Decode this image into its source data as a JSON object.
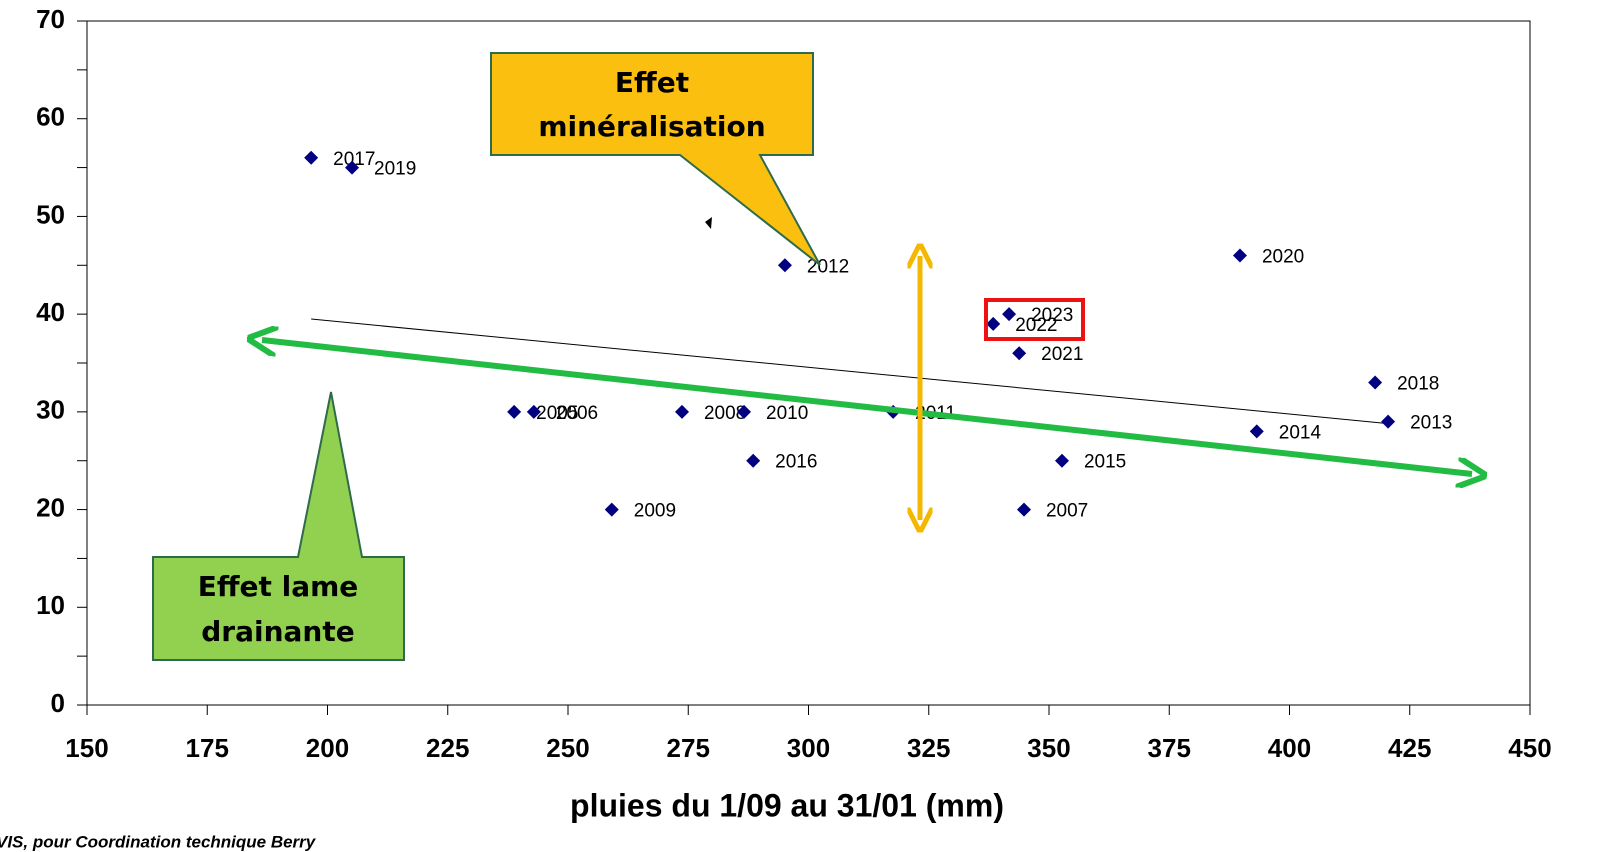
{
  "chart_data": {
    "type": "scatter",
    "x_label": "pluies du 1/09 au 31/01 (mm)",
    "source": "VIS, pour Coordination technique Berry",
    "color": "#000080",
    "x": [
      196.6,
      205.1,
      295.1,
      389.7,
      341.7,
      338.4,
      343.8,
      417.8,
      420.5,
      393.2,
      238.8,
      242.9,
      273.7,
      286.6,
      317.6,
      288.5,
      352.7,
      259.1,
      344.8
    ],
    "y": [
      56,
      55,
      45,
      46,
      40,
      39,
      36,
      33,
      29,
      28,
      30,
      30,
      30,
      30,
      30,
      25,
      25,
      20,
      20
    ],
    "labels": [
      "2017",
      "2019",
      "2012",
      "2020",
      "2023",
      "2022",
      "2021",
      "2018",
      "2013",
      "2014",
      "2005",
      "2006",
      "2008",
      "2010",
      "2011",
      "2016",
      "2015",
      "2009",
      "2007"
    ],
    "trendline": {
      "x": [
        196.6,
        420.5
      ],
      "y": [
        39.5,
        28.8
      ]
    },
    "annotations": [
      [
        "Effet",
        "minéralisation"
      ],
      [
        "Effet lame",
        "drainante"
      ]
    ],
    "xlim": [
      150,
      450
    ],
    "xticks": [
      150,
      175,
      200,
      225,
      250,
      275,
      300,
      325,
      350,
      375,
      400,
      425,
      450
    ],
    "ylim": [
      0,
      70
    ],
    "yticks": [
      0,
      10,
      20,
      30,
      40,
      50,
      60,
      70
    ]
  }
}
